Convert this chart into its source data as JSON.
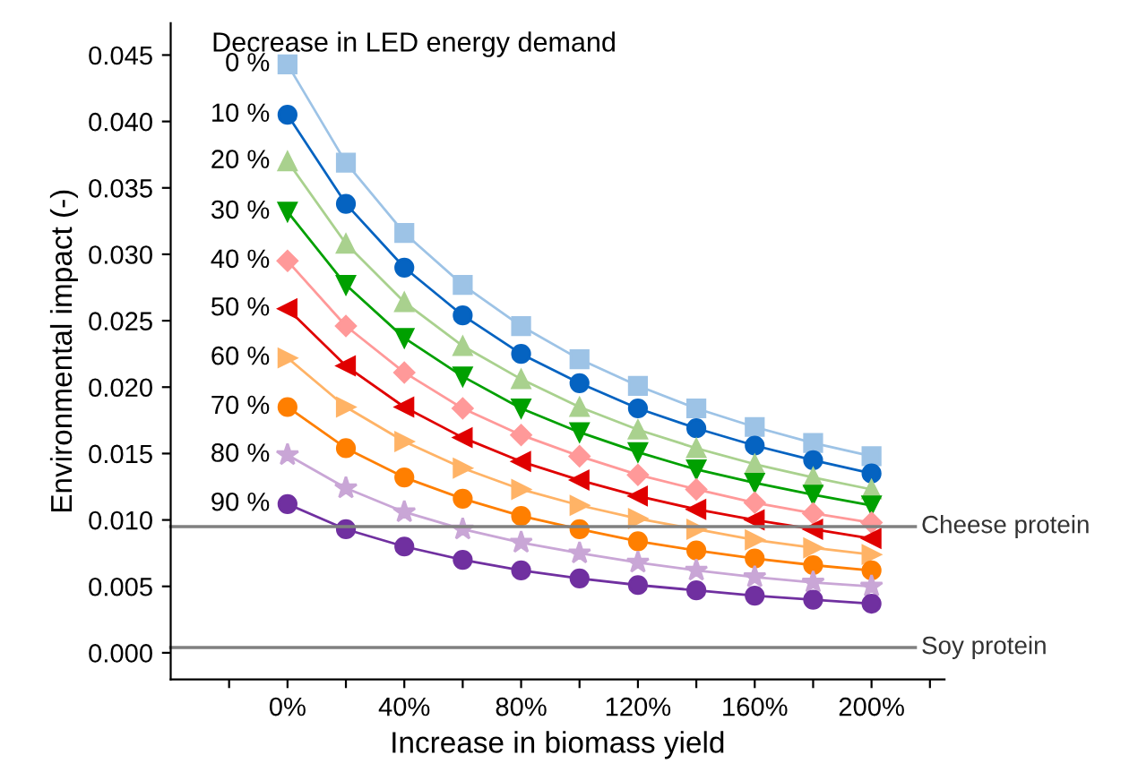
{
  "chart_data": {
    "type": "line",
    "xlabel": "Increase in biomass yield",
    "ylabel": "Environmental impact (-)",
    "legend_title": "Decrease in LED energy demand",
    "x": [
      0,
      20,
      40,
      60,
      80,
      100,
      120,
      140,
      160,
      180,
      200
    ],
    "xlim": [
      -40,
      225
    ],
    "xticks": [
      {
        "value": -20,
        "label": null
      },
      {
        "value": 0,
        "label": "0%"
      },
      {
        "value": 20,
        "label": null
      },
      {
        "value": 40,
        "label": "40%"
      },
      {
        "value": 60,
        "label": null
      },
      {
        "value": 80,
        "label": "80%"
      },
      {
        "value": 100,
        "label": null
      },
      {
        "value": 120,
        "label": "120%"
      },
      {
        "value": 140,
        "label": null
      },
      {
        "value": 160,
        "label": "160%"
      },
      {
        "value": 180,
        "label": null
      },
      {
        "value": 200,
        "label": "200%"
      },
      {
        "value": 220,
        "label": null
      }
    ],
    "ylim": [
      -0.002,
      0.0474
    ],
    "yticks": [
      {
        "value": 0,
        "label": "0.000"
      },
      {
        "value": 0.005,
        "label": "0.005"
      },
      {
        "value": 0.01,
        "label": "0.010"
      },
      {
        "value": 0.015,
        "label": "0.015"
      },
      {
        "value": 0.02,
        "label": "0.020"
      },
      {
        "value": 0.025,
        "label": "0.025"
      },
      {
        "value": 0.03,
        "label": "0.030"
      },
      {
        "value": 0.035,
        "label": "0.035"
      },
      {
        "value": 0.04,
        "label": "0.040"
      },
      {
        "value": 0.045,
        "label": "0.045"
      }
    ],
    "series": [
      {
        "name": "0 %",
        "color": "#9dc3e6",
        "marker": "square",
        "values": [
          0.0443,
          0.0369,
          0.0316,
          0.0277,
          0.0246,
          0.0221,
          0.0201,
          0.0184,
          0.017,
          0.0158,
          0.0148
        ]
      },
      {
        "name": "10 %",
        "color": "#0563c1",
        "marker": "circle",
        "values": [
          0.0405,
          0.0338,
          0.029,
          0.0254,
          0.0225,
          0.0203,
          0.0184,
          0.0169,
          0.0156,
          0.0145,
          0.0135
        ]
      },
      {
        "name": "20 %",
        "color": "#a9d18e",
        "marker": "triangle",
        "values": [
          0.037,
          0.0308,
          0.0264,
          0.0231,
          0.0206,
          0.0185,
          0.0168,
          0.0154,
          0.0142,
          0.0132,
          0.0123
        ]
      },
      {
        "name": "30 %",
        "color": "#00a000",
        "marker": "triangle-down",
        "values": [
          0.0332,
          0.0277,
          0.0237,
          0.0208,
          0.0184,
          0.0166,
          0.0151,
          0.0138,
          0.0128,
          0.0119,
          0.0111
        ]
      },
      {
        "name": "40 %",
        "color": "#ff9999",
        "marker": "diamond",
        "values": [
          0.0295,
          0.0246,
          0.0211,
          0.0184,
          0.0164,
          0.0148,
          0.0134,
          0.0123,
          0.0113,
          0.0105,
          0.0098
        ]
      },
      {
        "name": "50 %",
        "color": "#e00000",
        "marker": "triangle-left",
        "values": [
          0.0259,
          0.0216,
          0.0185,
          0.0162,
          0.0144,
          0.013,
          0.0118,
          0.0108,
          0.01,
          0.0093,
          0.0086
        ]
      },
      {
        "name": "60 %",
        "color": "#ffb366",
        "marker": "triangle-right",
        "values": [
          0.0222,
          0.0185,
          0.0159,
          0.0139,
          0.0123,
          0.0111,
          0.0101,
          0.0093,
          0.0085,
          0.0079,
          0.0074
        ]
      },
      {
        "name": "70 %",
        "color": "#ff7f00",
        "marker": "circle",
        "values": [
          0.0185,
          0.0154,
          0.0132,
          0.0116,
          0.0103,
          0.0093,
          0.0084,
          0.0077,
          0.0071,
          0.0066,
          0.0062
        ]
      },
      {
        "name": "80 %",
        "color": "#c9a6d6",
        "marker": "star",
        "values": [
          0.0149,
          0.0124,
          0.0106,
          0.0093,
          0.0083,
          0.0075,
          0.0068,
          0.0062,
          0.0057,
          0.0053,
          0.005
        ]
      },
      {
        "name": "90 %",
        "color": "#7030a0",
        "marker": "circle",
        "values": [
          0.0112,
          0.0093,
          0.008,
          0.007,
          0.0062,
          0.0056,
          0.0051,
          0.0047,
          0.0043,
          0.004,
          0.0037
        ]
      }
    ],
    "ref_lines": [
      {
        "axis": "y",
        "value": 0.0095,
        "label": "Cheese protein",
        "color": "#808080"
      },
      {
        "axis": "y",
        "value": 0.0004,
        "label": "Soy protein",
        "color": "#808080"
      }
    ],
    "legend": false,
    "grid": false
  }
}
